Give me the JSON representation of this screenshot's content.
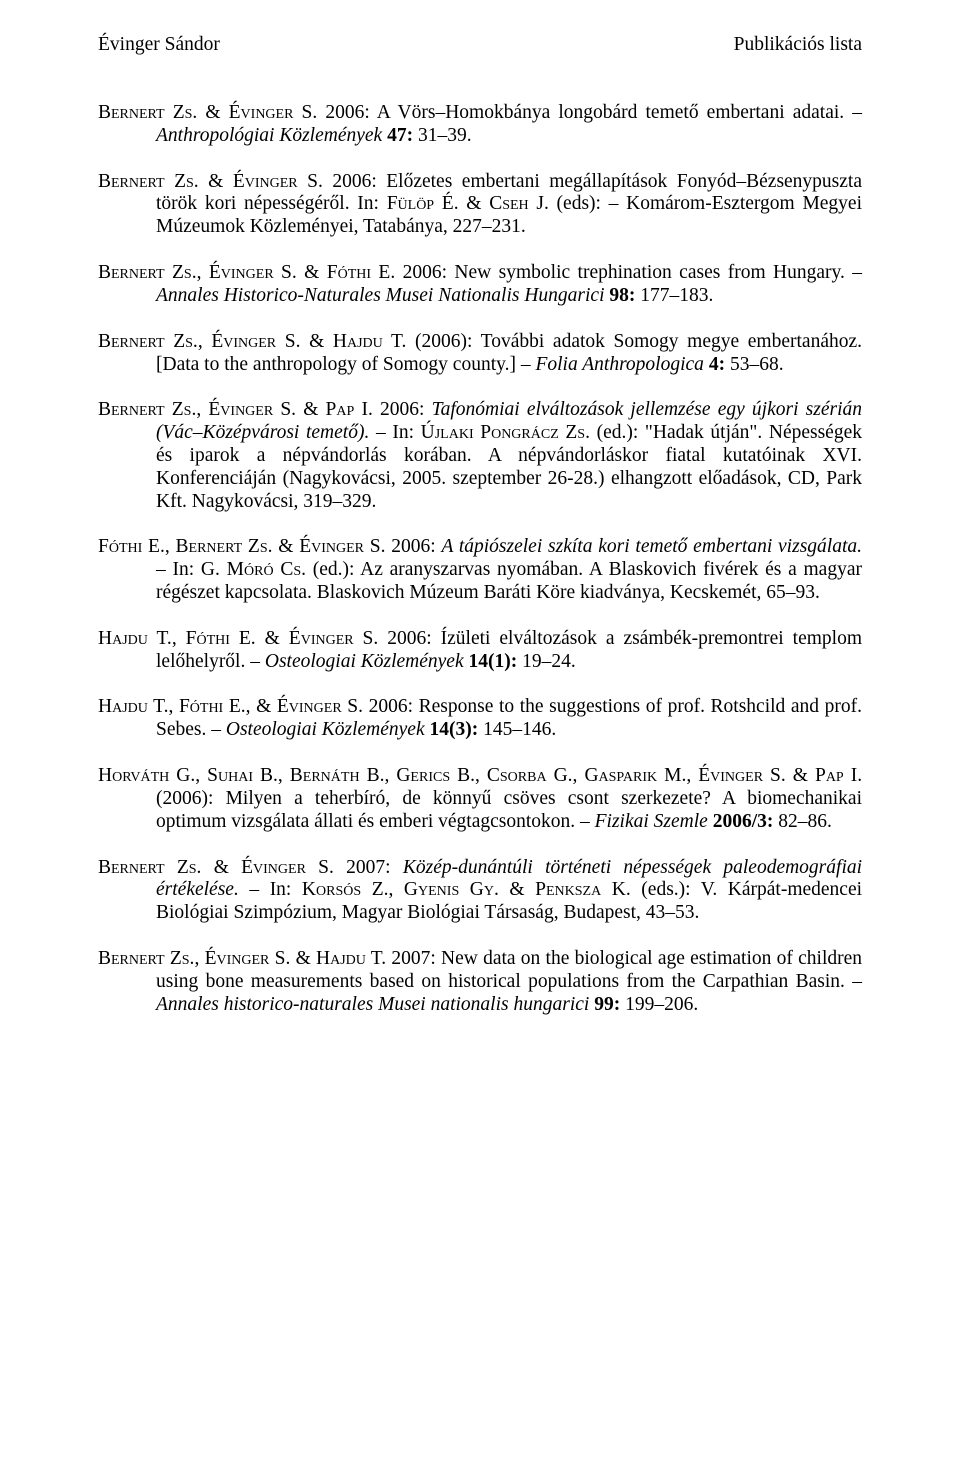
{
  "header": {
    "left": "Évinger Sándor",
    "right": "Publikációs lista"
  },
  "entries": [
    {
      "segments": [
        {
          "t": "Bernert Zs.",
          "cls": "sc"
        },
        {
          "t": " & "
        },
        {
          "t": "Évinger S.",
          "cls": "sc"
        },
        {
          "t": " 2006: A Vörs–Homokbánya longobárd temető embertani adatai. – "
        },
        {
          "t": "Anthropológiai Közlemények",
          "cls": "it"
        },
        {
          "t": " "
        },
        {
          "t": "47:",
          "cls": "b"
        },
        {
          "t": " 31–39."
        }
      ]
    },
    {
      "segments": [
        {
          "t": "Bernert Zs.",
          "cls": "sc"
        },
        {
          "t": " & "
        },
        {
          "t": "Évinger S.",
          "cls": "sc"
        },
        {
          "t": " 2006: Előzetes embertani megállapítások Fonyód–Bézsenypuszta török kori népességéről. In: "
        },
        {
          "t": "Fülöp É.",
          "cls": "sc"
        },
        {
          "t": " & "
        },
        {
          "t": "Cseh J.",
          "cls": "sc"
        },
        {
          "t": " (eds): – Komárom-Esztergom Megyei Múzeumok Közleményei, Tatabánya, 227–231."
        }
      ]
    },
    {
      "segments": [
        {
          "t": "Bernert Zs.",
          "cls": "sc"
        },
        {
          "t": ", "
        },
        {
          "t": "Évinger S.",
          "cls": "sc"
        },
        {
          "t": " & "
        },
        {
          "t": "Fóthi E.",
          "cls": "sc"
        },
        {
          "t": " 2006: New symbolic trephination cases from Hungary. – "
        },
        {
          "t": "Annales Historico-Naturales Musei Nationalis Hungarici",
          "cls": "it"
        },
        {
          "t": " "
        },
        {
          "t": "98:",
          "cls": "b"
        },
        {
          "t": " 177–183."
        }
      ]
    },
    {
      "segments": [
        {
          "t": "Bernert Zs.",
          "cls": "sc"
        },
        {
          "t": ", "
        },
        {
          "t": "Évinger S.",
          "cls": "sc"
        },
        {
          "t": " & "
        },
        {
          "t": "Hajdu T.",
          "cls": "sc"
        },
        {
          "t": " (2006): További adatok Somogy megye embertanához. [Data to the anthropology of Somogy county.] – "
        },
        {
          "t": "Folia Anthropologica",
          "cls": "it"
        },
        {
          "t": " "
        },
        {
          "t": "4:",
          "cls": "b"
        },
        {
          "t": " 53–68."
        }
      ]
    },
    {
      "segments": [
        {
          "t": "Bernert Zs.",
          "cls": "sc"
        },
        {
          "t": ", "
        },
        {
          "t": "Évinger S.",
          "cls": "sc"
        },
        {
          "t": " & "
        },
        {
          "t": "Pap I.",
          "cls": "sc"
        },
        {
          "t": " 2006: "
        },
        {
          "t": "Tafonómiai elváltozások jellemzése egy újkori szérián (Vác–Középvárosi temető).",
          "cls": "it"
        },
        {
          "t": " – In: "
        },
        {
          "t": "Újlaki Pongrácz Zs.",
          "cls": "sc"
        },
        {
          "t": " (ed.): \"Hadak útján\". Népességek és iparok a népvándorlás korában. A népvándorláskor fiatal kutatóinak XVI. Konferenciáján (Nagykovácsi, 2005. szeptember 26-28.) elhangzott előadások, CD, Park Kft. Nagykovácsi, 319–329."
        }
      ]
    },
    {
      "segments": [
        {
          "t": "Fóthi E.",
          "cls": "sc"
        },
        {
          "t": ", "
        },
        {
          "t": "Bernert Zs.",
          "cls": "sc"
        },
        {
          "t": " & "
        },
        {
          "t": "Évinger S.",
          "cls": "sc"
        },
        {
          "t": " 2006: "
        },
        {
          "t": "A tápiószelei szkíta kori temető embertani vizsgálata.",
          "cls": "it"
        },
        {
          "t": " – In: G. "
        },
        {
          "t": "Móró Cs.",
          "cls": "sc"
        },
        {
          "t": " (ed.): Az aranyszarvas nyomában. A Blaskovich fivérek és a magyar régészet kapcsolata. Blaskovich Múzeum Baráti Köre kiadványa, Kecskemét, 65–93."
        }
      ]
    },
    {
      "segments": [
        {
          "t": "Hajdu T.",
          "cls": "sc"
        },
        {
          "t": ", "
        },
        {
          "t": "Fóthi E.",
          "cls": "sc"
        },
        {
          "t": " & "
        },
        {
          "t": "Évinger S.",
          "cls": "sc"
        },
        {
          "t": " 2006: Ízületi elváltozások a zsámbék-premontrei templom lelőhelyről. – "
        },
        {
          "t": "Osteologiai Közlemények",
          "cls": "it"
        },
        {
          "t": " "
        },
        {
          "t": "14(1):",
          "cls": "b"
        },
        {
          "t": " 19–24."
        }
      ]
    },
    {
      "segments": [
        {
          "t": "Hajdu T.",
          "cls": "sc"
        },
        {
          "t": ", "
        },
        {
          "t": "Fóthi E.",
          "cls": "sc"
        },
        {
          "t": ", & "
        },
        {
          "t": "Évinger S.",
          "cls": "sc"
        },
        {
          "t": " 2006: Response to the suggestions of prof. Rotshcild and prof. Sebes. – "
        },
        {
          "t": "Osteologiai Közlemények",
          "cls": "it"
        },
        {
          "t": " "
        },
        {
          "t": "14(3):",
          "cls": "b"
        },
        {
          "t": " 145–146."
        }
      ]
    },
    {
      "segments": [
        {
          "t": "Horváth G.",
          "cls": "sc"
        },
        {
          "t": ", "
        },
        {
          "t": "Suhai B.",
          "cls": "sc"
        },
        {
          "t": ", "
        },
        {
          "t": "Bernáth B.",
          "cls": "sc"
        },
        {
          "t": ", "
        },
        {
          "t": "Gerics B.",
          "cls": "sc"
        },
        {
          "t": ", "
        },
        {
          "t": "Csorba G.",
          "cls": "sc"
        },
        {
          "t": ", "
        },
        {
          "t": "Gasparik M.",
          "cls": "sc"
        },
        {
          "t": ", "
        },
        {
          "t": "Évinger S.",
          "cls": "sc"
        },
        {
          "t": " & "
        },
        {
          "t": "Pap I.",
          "cls": "sc"
        },
        {
          "t": " (2006): Milyen a teherbíró, de könnyű csöves csont szerkezete? A biomechanikai optimum vizsgálata állati és emberi végtagcsontokon. – "
        },
        {
          "t": "Fizikai Szemle",
          "cls": "it"
        },
        {
          "t": " "
        },
        {
          "t": "2006/3:",
          "cls": "b"
        },
        {
          "t": " 82–86."
        }
      ]
    },
    {
      "segments": [
        {
          "t": "Bernert Zs.",
          "cls": "sc"
        },
        {
          "t": " & "
        },
        {
          "t": "Évinger S.",
          "cls": "sc"
        },
        {
          "t": " 2007: "
        },
        {
          "t": "Közép-dunántúli történeti népességek paleodemográfiai értékelése.",
          "cls": "it"
        },
        {
          "t": " – In: "
        },
        {
          "t": "Korsós Z.",
          "cls": "sc"
        },
        {
          "t": ", "
        },
        {
          "t": "Gyenis Gy.",
          "cls": "sc"
        },
        {
          "t": " & "
        },
        {
          "t": "Penksza K.",
          "cls": "sc"
        },
        {
          "t": " (eds.): V. Kárpát-medencei Biológiai Szimpózium, Magyar Biológiai Társaság, Budapest, 43–53."
        }
      ]
    },
    {
      "segments": [
        {
          "t": "Bernert Zs.",
          "cls": "sc"
        },
        {
          "t": ", "
        },
        {
          "t": "Évinger S.",
          "cls": "sc"
        },
        {
          "t": " & "
        },
        {
          "t": "Hajdu T.",
          "cls": "sc"
        },
        {
          "t": " 2007: New data on the biological age estimation of children using bone measurements based on historical populations from the Carpathian Basin. – "
        },
        {
          "t": "Annales historico-naturales Musei nationalis hungarici",
          "cls": "it"
        },
        {
          "t": " "
        },
        {
          "t": "99:",
          "cls": "b"
        },
        {
          "t": " 199–206."
        }
      ]
    }
  ]
}
